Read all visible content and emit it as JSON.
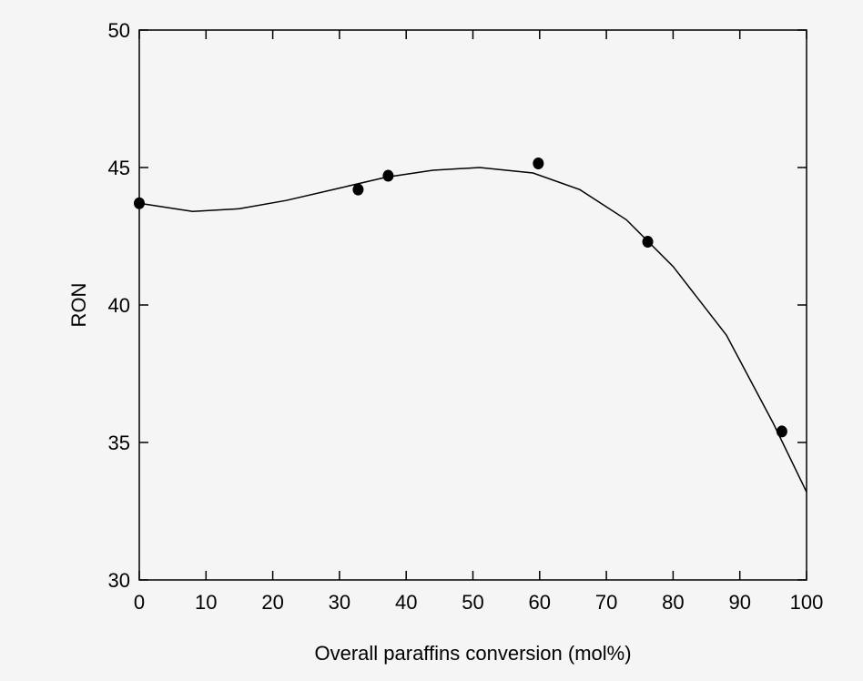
{
  "chart_data": {
    "type": "scatter",
    "title": "",
    "xlabel": "Overall paraffins conversion (mol%)",
    "ylabel": "RON",
    "xlim": [
      0,
      100
    ],
    "ylim": [
      30,
      50
    ],
    "xticks": [
      0,
      10,
      20,
      30,
      40,
      50,
      60,
      70,
      80,
      90,
      100
    ],
    "yticks": [
      30,
      35,
      40,
      45,
      50
    ],
    "grid": false,
    "legend": "none",
    "series": [
      {
        "kind": "points",
        "color": "#000000",
        "x": [
          0,
          32.8,
          37.3,
          59.8,
          76.2,
          96.3
        ],
        "y": [
          43.7,
          44.2,
          44.7,
          45.15,
          42.3,
          35.4
        ]
      },
      {
        "kind": "fit-line",
        "color": "#000000",
        "x": [
          0,
          8,
          15,
          22,
          30,
          37,
          44,
          51,
          59,
          66,
          73,
          80,
          88,
          95,
          100
        ],
        "y": [
          43.7,
          43.4,
          43.5,
          43.8,
          44.25,
          44.65,
          44.9,
          45.0,
          44.8,
          44.2,
          43.1,
          41.4,
          38.9,
          35.7,
          33.2
        ]
      }
    ]
  }
}
